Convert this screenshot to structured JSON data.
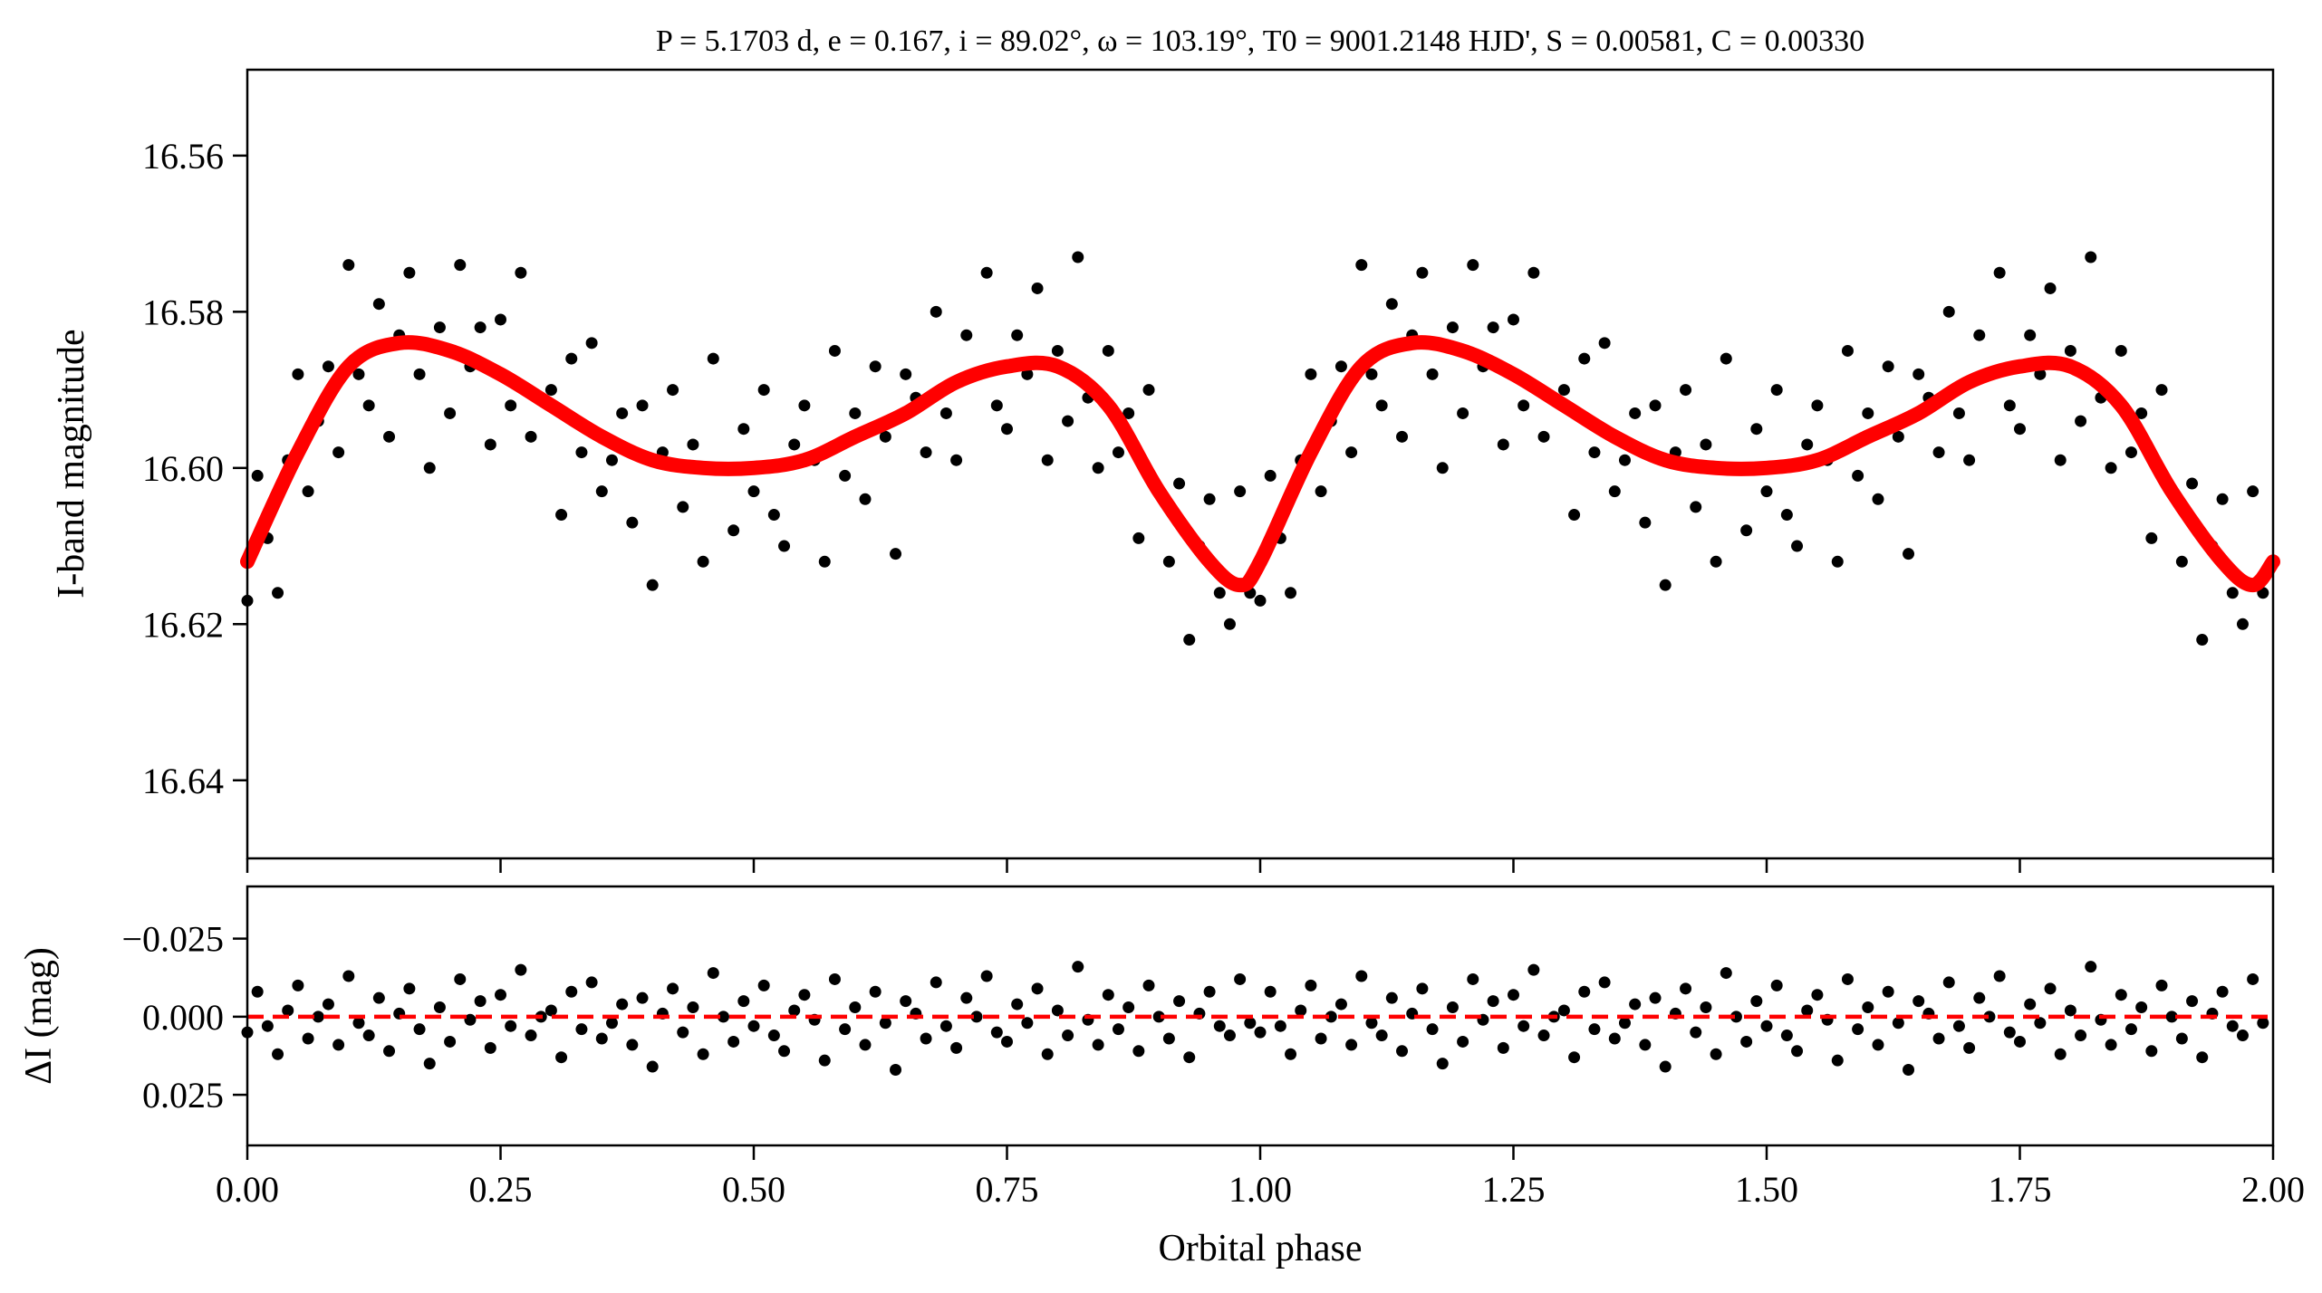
{
  "chart_data": [
    {
      "type": "scatter",
      "panel": "light-curve",
      "title": "P = 5.1703 d, e = 0.167, i = 89.02°, ω = 103.19°, T0 = 9001.2148 HJD', S = 0.00581, C = 0.00330",
      "xlabel": "Orbital phase",
      "ylabel": "I-band magnitude",
      "xlim": [
        0,
        2
      ],
      "ylim": [
        16.549,
        16.65
      ],
      "y_inverted": true,
      "grid": false,
      "phase_repeated": true,
      "x_ticks": [
        "0.00",
        "0.25",
        "0.50",
        "0.75",
        "1.00",
        "1.25",
        "1.50",
        "1.75",
        "2.00"
      ],
      "y_ticks": [
        "16.56",
        "16.58",
        "16.60",
        "16.62",
        "16.64"
      ],
      "point_color": "#000000",
      "model_color": "#ff0000",
      "model_curve": [
        [
          0,
          16.612
        ],
        [
          0.05,
          16.598
        ],
        [
          0.1,
          16.587
        ],
        [
          0.15,
          16.584
        ],
        [
          0.2,
          16.585
        ],
        [
          0.25,
          16.588
        ],
        [
          0.3,
          16.592
        ],
        [
          0.35,
          16.596
        ],
        [
          0.4,
          16.599
        ],
        [
          0.45,
          16.6
        ],
        [
          0.5,
          16.6
        ],
        [
          0.55,
          16.599
        ],
        [
          0.6,
          16.596
        ],
        [
          0.65,
          16.593
        ],
        [
          0.7,
          16.589
        ],
        [
          0.75,
          16.587
        ],
        [
          0.8,
          16.587
        ],
        [
          0.85,
          16.592
        ],
        [
          0.9,
          16.603
        ],
        [
          0.95,
          16.612
        ],
        [
          0.98,
          16.615
        ],
        [
          1.0,
          16.612
        ]
      ]
    },
    {
      "type": "scatter",
      "panel": "residuals",
      "xlabel": "Orbital phase",
      "ylabel": "ΔI (mag)",
      "xlim": [
        0,
        2
      ],
      "ylim": [
        -0.0417,
        0.0412
      ],
      "y_inverted": true,
      "y_ticks": [
        "−0.025",
        "0.000",
        "0.025"
      ],
      "zero_line_color": "#ff0000",
      "zero_line_style": "dashed"
    }
  ],
  "points": [
    [
      0.0,
      16.617,
      0.005
    ],
    [
      0.01,
      16.601,
      -0.008
    ],
    [
      0.02,
      16.609,
      0.003
    ],
    [
      0.03,
      16.616,
      0.012
    ],
    [
      0.04,
      16.599,
      -0.002
    ],
    [
      0.05,
      16.588,
      -0.01
    ],
    [
      0.06,
      16.603,
      0.007
    ],
    [
      0.07,
      16.594,
      0.0
    ],
    [
      0.08,
      16.587,
      -0.004
    ],
    [
      0.09,
      16.598,
      0.009
    ],
    [
      0.1,
      16.574,
      -0.013
    ],
    [
      0.11,
      16.588,
      0.002
    ],
    [
      0.12,
      16.592,
      0.006
    ],
    [
      0.13,
      16.579,
      -0.006
    ],
    [
      0.14,
      16.596,
      0.011
    ],
    [
      0.15,
      16.583,
      -0.001
    ],
    [
      0.16,
      16.575,
      -0.009
    ],
    [
      0.17,
      16.588,
      0.004
    ],
    [
      0.18,
      16.6,
      0.015
    ],
    [
      0.19,
      16.582,
      -0.003
    ],
    [
      0.2,
      16.593,
      0.008
    ],
    [
      0.21,
      16.574,
      -0.012
    ],
    [
      0.22,
      16.587,
      0.001
    ],
    [
      0.23,
      16.582,
      -0.005
    ],
    [
      0.24,
      16.597,
      0.01
    ],
    [
      0.25,
      16.581,
      -0.007
    ],
    [
      0.26,
      16.592,
      0.003
    ],
    [
      0.27,
      16.575,
      -0.015
    ],
    [
      0.28,
      16.596,
      0.006
    ],
    [
      0.29,
      16.591,
      0.0
    ],
    [
      0.3,
      16.59,
      -0.002
    ],
    [
      0.31,
      16.606,
      0.013
    ],
    [
      0.32,
      16.586,
      -0.008
    ],
    [
      0.33,
      16.598,
      0.004
    ],
    [
      0.34,
      16.584,
      -0.011
    ],
    [
      0.35,
      16.603,
      0.007
    ],
    [
      0.36,
      16.599,
      0.002
    ],
    [
      0.37,
      16.593,
      -0.004
    ],
    [
      0.38,
      16.607,
      0.009
    ],
    [
      0.39,
      16.592,
      -0.006
    ],
    [
      0.4,
      16.615,
      0.016
    ],
    [
      0.41,
      16.598,
      -0.001
    ],
    [
      0.42,
      16.59,
      -0.009
    ],
    [
      0.43,
      16.605,
      0.005
    ],
    [
      0.44,
      16.597,
      -0.003
    ],
    [
      0.45,
      16.612,
      0.012
    ],
    [
      0.46,
      16.586,
      -0.014
    ],
    [
      0.47,
      16.6,
      0.0
    ],
    [
      0.48,
      16.608,
      0.008
    ],
    [
      0.49,
      16.595,
      -0.005
    ],
    [
      0.5,
      16.603,
      0.003
    ],
    [
      0.51,
      16.59,
      -0.01
    ],
    [
      0.52,
      16.606,
      0.006
    ],
    [
      0.53,
      16.61,
      0.011
    ],
    [
      0.54,
      16.597,
      -0.002
    ],
    [
      0.55,
      16.592,
      -0.007
    ],
    [
      0.56,
      16.599,
      0.001
    ],
    [
      0.57,
      16.612,
      0.014
    ],
    [
      0.58,
      16.585,
      -0.012
    ],
    [
      0.59,
      16.601,
      0.004
    ],
    [
      0.6,
      16.593,
      -0.003
    ],
    [
      0.61,
      16.604,
      0.009
    ],
    [
      0.62,
      16.587,
      -0.008
    ],
    [
      0.63,
      16.596,
      0.002
    ],
    [
      0.64,
      16.611,
      0.017
    ],
    [
      0.65,
      16.588,
      -0.005
    ],
    [
      0.66,
      16.591,
      -0.001
    ],
    [
      0.67,
      16.598,
      0.007
    ],
    [
      0.68,
      16.58,
      -0.011
    ],
    [
      0.69,
      16.593,
      0.003
    ],
    [
      0.7,
      16.599,
      0.01
    ],
    [
      0.71,
      16.583,
      -0.006
    ],
    [
      0.72,
      16.588,
      0.0
    ],
    [
      0.73,
      16.575,
      -0.013
    ],
    [
      0.74,
      16.592,
      0.005
    ],
    [
      0.75,
      16.595,
      0.008
    ],
    [
      0.76,
      16.583,
      -0.004
    ],
    [
      0.77,
      16.588,
      0.002
    ],
    [
      0.78,
      16.577,
      -0.009
    ],
    [
      0.79,
      16.599,
      0.012
    ],
    [
      0.8,
      16.585,
      -0.002
    ],
    [
      0.81,
      16.594,
      0.006
    ],
    [
      0.82,
      16.573,
      -0.016
    ],
    [
      0.83,
      16.591,
      0.001
    ],
    [
      0.84,
      16.6,
      0.009
    ],
    [
      0.85,
      16.585,
      -0.007
    ],
    [
      0.86,
      16.598,
      0.004
    ],
    [
      0.87,
      16.593,
      -0.003
    ],
    [
      0.88,
      16.609,
      0.011
    ],
    [
      0.89,
      16.59,
      -0.01
    ],
    [
      0.9,
      16.603,
      0.0
    ],
    [
      0.91,
      16.612,
      0.007
    ],
    [
      0.92,
      16.602,
      -0.005
    ],
    [
      0.93,
      16.622,
      0.013
    ],
    [
      0.94,
      16.61,
      -0.001
    ],
    [
      0.95,
      16.604,
      -0.008
    ],
    [
      0.96,
      16.616,
      0.003
    ],
    [
      0.97,
      16.62,
      0.006
    ],
    [
      0.98,
      16.603,
      -0.012
    ],
    [
      0.99,
      16.616,
      0.002
    ]
  ]
}
